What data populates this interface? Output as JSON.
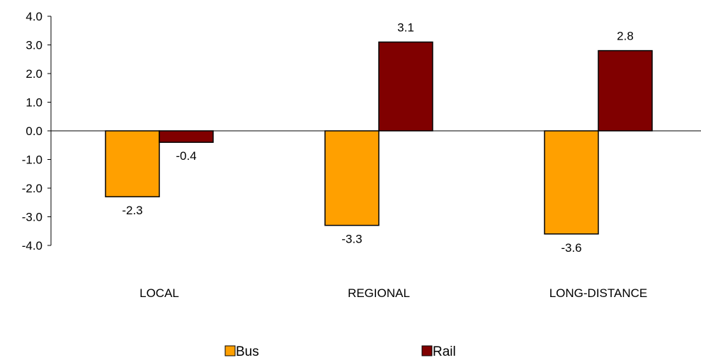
{
  "chart_data": {
    "type": "bar",
    "title": "",
    "xlabel": "",
    "ylabel": "",
    "categories": [
      "LOCAL",
      "REGIONAL",
      "LONG-DISTANCE"
    ],
    "series": [
      {
        "name": "Bus",
        "values": [
          -2.3,
          -3.3,
          -3.6
        ],
        "color": "#FFA000"
      },
      {
        "name": "Rail",
        "values": [
          -0.4,
          3.1,
          2.8
        ],
        "color": "#800000"
      }
    ],
    "ylim": [
      -4.0,
      4.0
    ],
    "yticks": [
      "-4.0",
      "-3.0",
      "-2.0",
      "-1.0",
      "0.0",
      "1.0",
      "2.0",
      "3.0",
      "4.0"
    ],
    "data_labels": [
      [
        "-2.3",
        "-3.3",
        "-3.6"
      ],
      [
        "-0.4",
        "3.1",
        "2.8"
      ]
    ],
    "grid": false,
    "legend_position": "bottom"
  }
}
